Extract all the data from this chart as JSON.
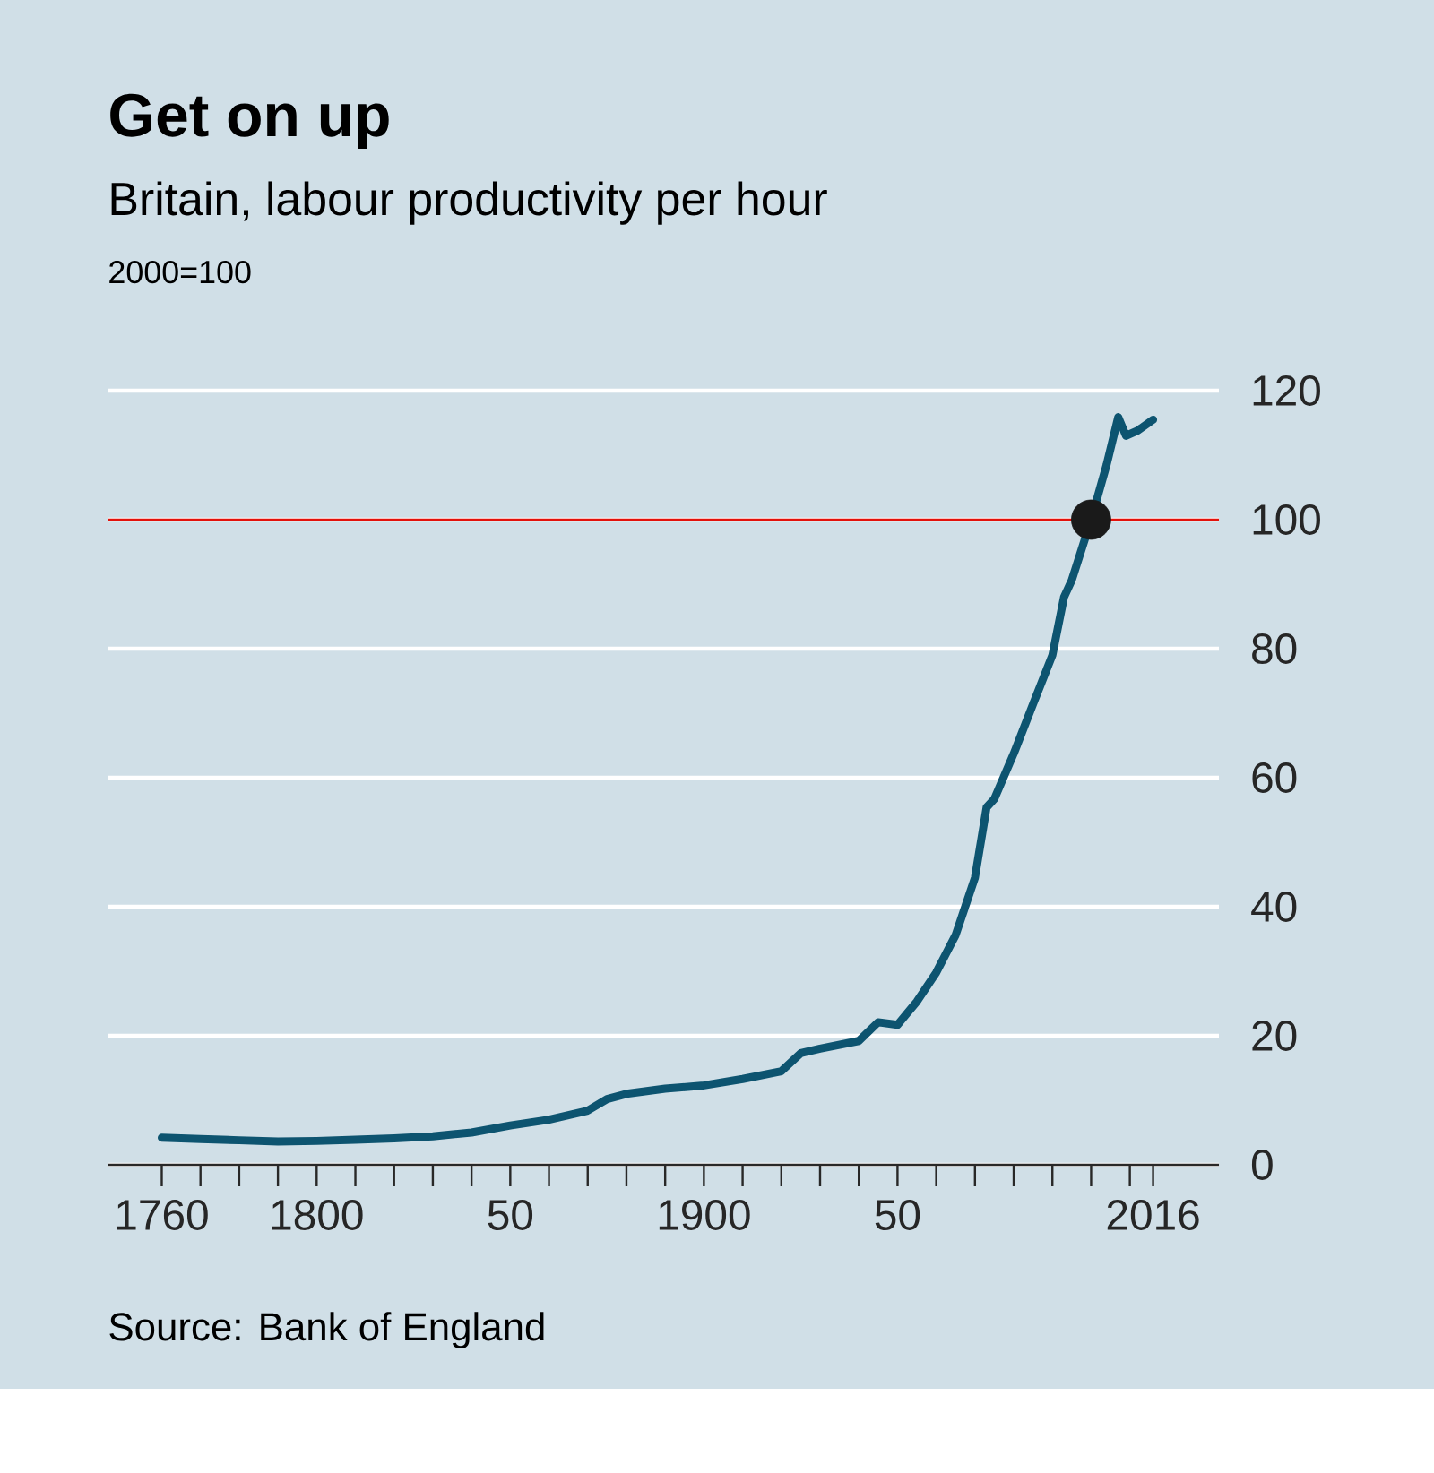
{
  "chart_data": {
    "type": "line",
    "title": "Get on up",
    "subtitle": "Britain, labour productivity per hour",
    "ylabel": "2000=100",
    "annotations": [
      "Source: Bank of England"
    ],
    "xlim": [
      1746,
      2033
    ],
    "xticks": [
      1760,
      {
        "value": 1770,
        "label": null
      },
      {
        "value": 1780,
        "label": null
      },
      {
        "value": 1790,
        "label": null
      },
      1800,
      {
        "value": 1810,
        "label": null
      },
      {
        "value": 1820,
        "label": null
      },
      {
        "value": 1830,
        "label": null
      },
      {
        "value": 1840,
        "label": null
      },
      {
        "value": 1850,
        "label": "50"
      },
      {
        "value": 1860,
        "label": null
      },
      {
        "value": 1870,
        "label": null
      },
      {
        "value": 1880,
        "label": null
      },
      {
        "value": 1890,
        "label": null
      },
      1900,
      {
        "value": 1910,
        "label": null
      },
      {
        "value": 1920,
        "label": null
      },
      {
        "value": 1930,
        "label": null
      },
      {
        "value": 1940,
        "label": null
      },
      {
        "value": 1950,
        "label": "50"
      },
      {
        "value": 1960,
        "label": null
      },
      {
        "value": 1970,
        "label": null
      },
      {
        "value": 1980,
        "label": null
      },
      {
        "value": 1990,
        "label": null
      },
      {
        "value": 2000,
        "label": null
      },
      {
        "value": 2010,
        "label": null
      },
      2016
    ],
    "ylim": [
      0,
      120
    ],
    "yticks": [
      0,
      20,
      40,
      60,
      80,
      100,
      120
    ],
    "grid": "y",
    "ref_lines": [
      {
        "axis": "y",
        "value": 100,
        "label": null,
        "color": "#e3120b"
      }
    ],
    "series": [
      {
        "color": "#0d5470",
        "x": [
          1760,
          1770,
          1780,
          1790,
          1800,
          1810,
          1820,
          1830,
          1840,
          1850,
          1860,
          1870,
          1875,
          1880,
          1890,
          1900,
          1910,
          1920,
          1925,
          1930,
          1940,
          1945,
          1950,
          1955,
          1960,
          1965,
          1970,
          1973,
          1975,
          1980,
          1985,
          1990,
          1993,
          1995,
          2000,
          2004,
          2007,
          2009,
          2012,
          2016
        ],
        "values": [
          4.2,
          4.0,
          3.8,
          3.6,
          3.7,
          3.9,
          4.1,
          4.4,
          5.0,
          6.1,
          7.0,
          8.4,
          10.2,
          11.0,
          11.8,
          12.3,
          13.3,
          14.5,
          17.3,
          18.0,
          19.2,
          22.1,
          21.7,
          25.3,
          29.8,
          35.6,
          44.5,
          55.4,
          56.7,
          63.7,
          71.4,
          79,
          88,
          90.6,
          100,
          108.5,
          115.9,
          113,
          113.8,
          115.5
        ]
      },
      {
        "type": "scatter",
        "color": "#1a1a1a",
        "marker": "circle",
        "x": [
          2000
        ],
        "values": [
          100
        ]
      }
    ]
  }
}
